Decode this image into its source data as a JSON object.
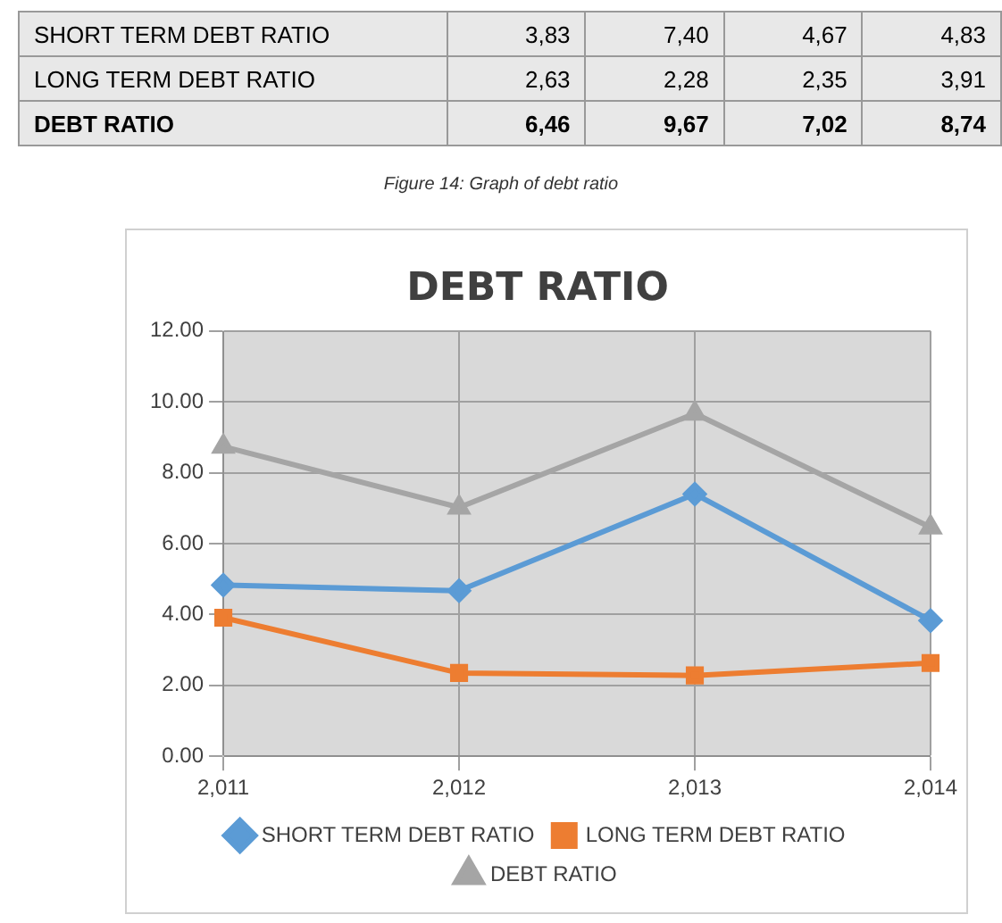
{
  "chart_data": {
    "type": "line",
    "title": "DEBT RATIO",
    "categories": [
      "2,011",
      "2,012",
      "2,013",
      "2,014"
    ],
    "series": [
      {
        "name": "SHORT TERM DEBT RATIO",
        "color": "#5b9bd5",
        "marker": "diamond",
        "values": [
          4.83,
          4.67,
          7.4,
          3.83
        ]
      },
      {
        "name": "LONG TERM DEBT RATIO",
        "color": "#ed7d31",
        "marker": "square",
        "values": [
          3.91,
          2.35,
          2.28,
          2.63
        ]
      },
      {
        "name": "DEBT RATIO",
        "color": "#a5a5a5",
        "marker": "triangle",
        "values": [
          8.74,
          7.02,
          9.67,
          6.46
        ]
      }
    ],
    "ylim": [
      0,
      12
    ],
    "yticks": [
      {
        "value": 0,
        "label": "0.00"
      },
      {
        "value": 2,
        "label": "2.00"
      },
      {
        "value": 4,
        "label": "4.00"
      },
      {
        "value": 6,
        "label": "6.00"
      },
      {
        "value": 8,
        "label": "8.00"
      },
      {
        "value": 10,
        "label": "10.00"
      },
      {
        "value": 12,
        "label": "12.00"
      }
    ],
    "grid": true,
    "legend": "bottom",
    "annotations": [
      "3,83",
      "7,40",
      "4,67",
      "4,83",
      "2,63",
      "2,28",
      "2,35",
      "3,91",
      "6,46",
      "9,67",
      "7,02",
      "8,74",
      "Figure 14: Graph of debt ratio"
    ]
  }
}
